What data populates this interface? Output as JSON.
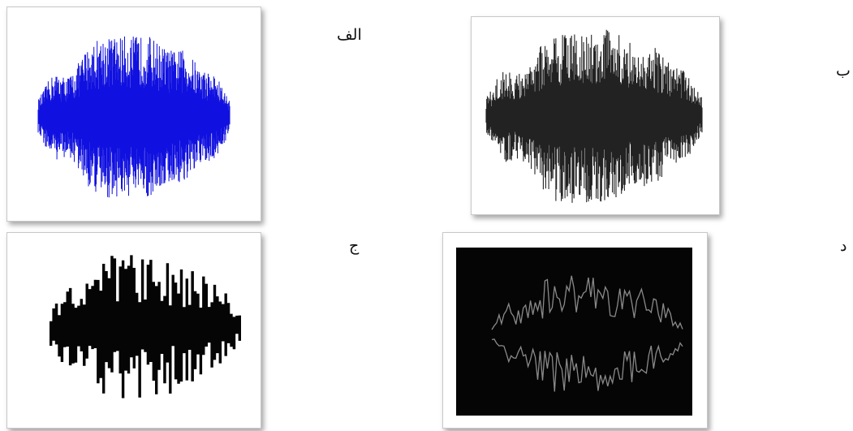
{
  "labels": {
    "a": "الف",
    "b": "ب",
    "c": "ج",
    "d": "د"
  },
  "colors": {
    "waveform_blue": "#1010e0",
    "waveform_dark": "#222222",
    "binary_fill": "#050505",
    "edge_bg": "#050505",
    "edge_line": "#8a8a8a"
  }
}
